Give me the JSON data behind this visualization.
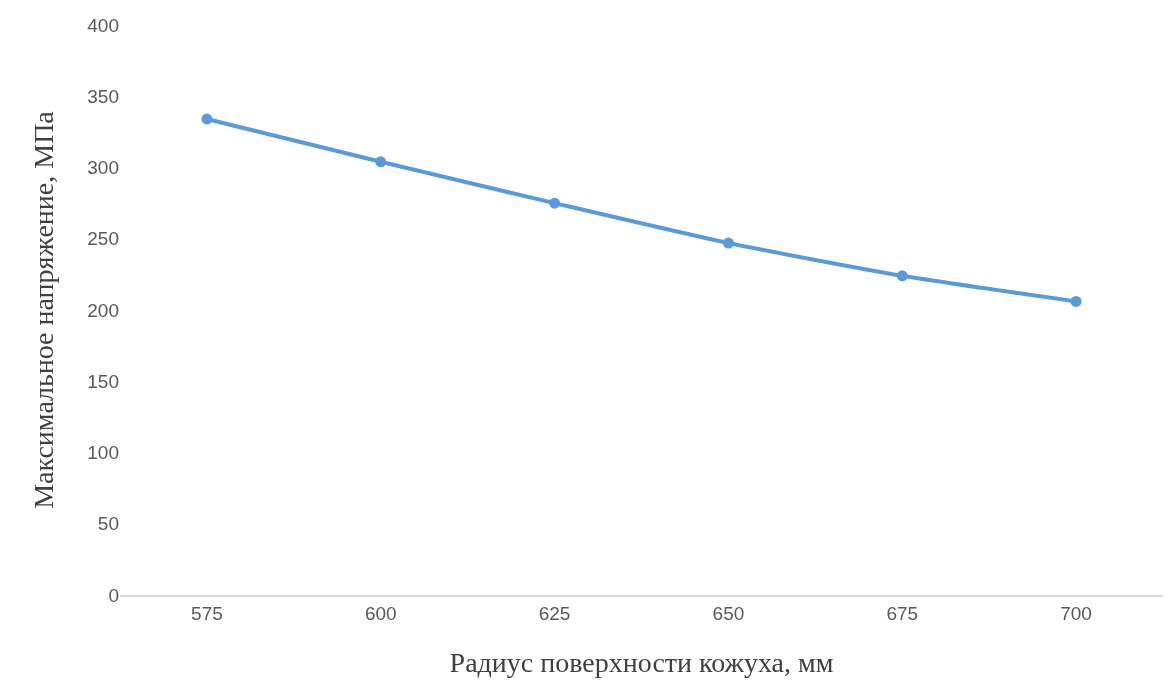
{
  "chart_data": {
    "type": "line",
    "xlabel": "Радиус поверхности кожуха, мм",
    "ylabel": "Максимальное напряжение, МПа",
    "categories": [
      "575",
      "600",
      "625",
      "650",
      "675",
      "700"
    ],
    "series": [
      {
        "color": "#5b9bd5",
        "values": [
          334,
          304,
          275,
          247,
          224,
          206
        ]
      }
    ],
    "ylim": [
      0,
      400
    ],
    "yticks": [
      0,
      50,
      100,
      150,
      200,
      250,
      300,
      350,
      400
    ],
    "marker": "circle"
  }
}
